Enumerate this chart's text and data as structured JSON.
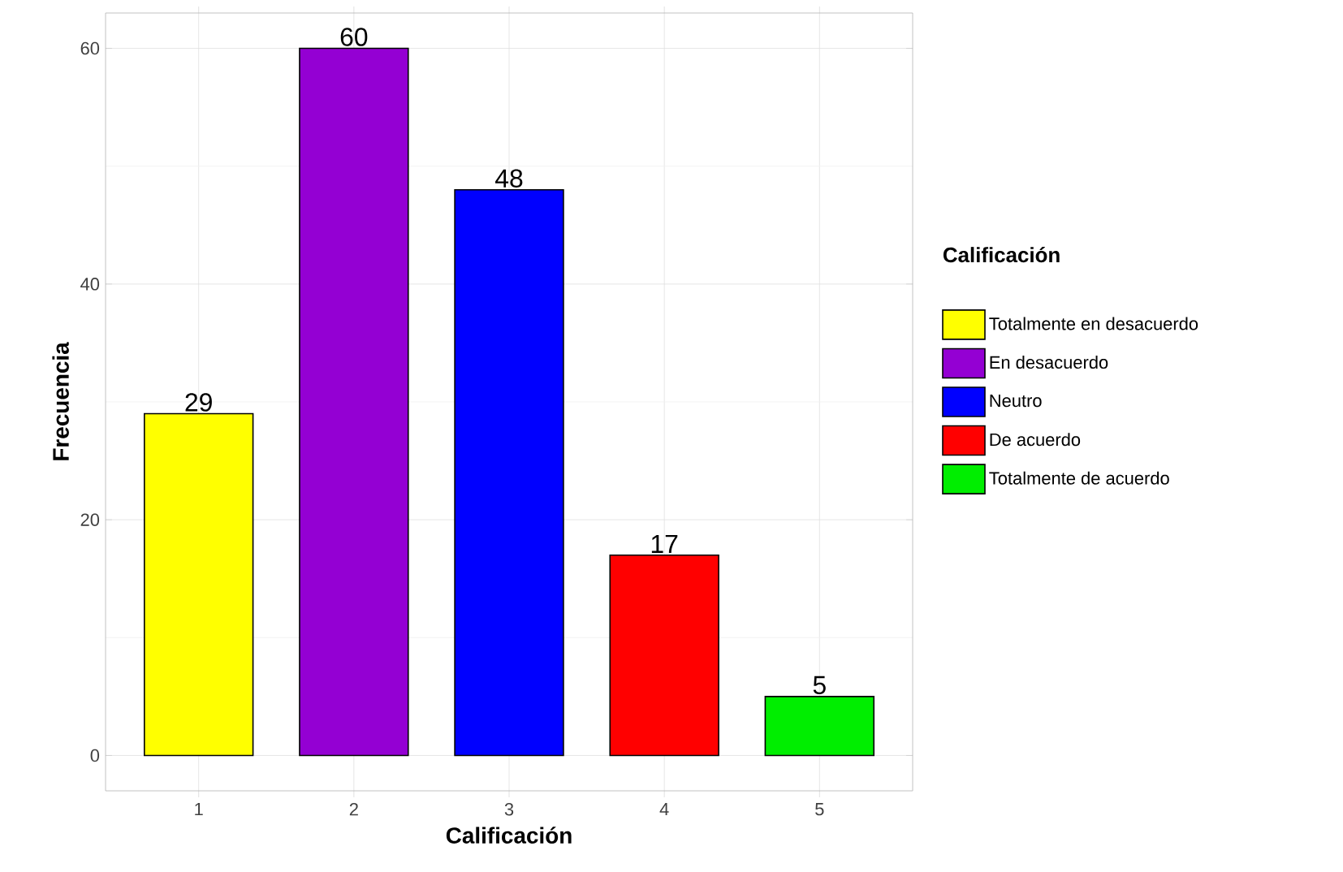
{
  "chart_data": {
    "type": "bar",
    "xlabel": "Calificación",
    "ylabel": "Frecuencia",
    "legend_title": "Calificación",
    "categories": [
      "1",
      "2",
      "3",
      "4",
      "5"
    ],
    "series": [
      {
        "name": "Totalmente en desacuerdo",
        "color": "#ffff00",
        "values": [
          29,
          null,
          null,
          null,
          null
        ]
      },
      {
        "name": "En desacuerdo",
        "color": "#9400d3",
        "values": [
          null,
          60,
          null,
          null,
          null
        ]
      },
      {
        "name": "Neutro",
        "color": "#0000ff",
        "values": [
          null,
          null,
          48,
          null,
          null
        ]
      },
      {
        "name": "De acuerdo",
        "color": "#ff0000",
        "values": [
          null,
          null,
          null,
          17,
          null
        ]
      },
      {
        "name": "Totalmente de acuerdo",
        "color": "#00ee00",
        "values": [
          null,
          null,
          null,
          null,
          5
        ]
      }
    ],
    "ylim": [
      -3,
      63
    ],
    "yticks": [
      0,
      20,
      40,
      60
    ],
    "grid": true,
    "legend": "right",
    "data_labels": true
  }
}
